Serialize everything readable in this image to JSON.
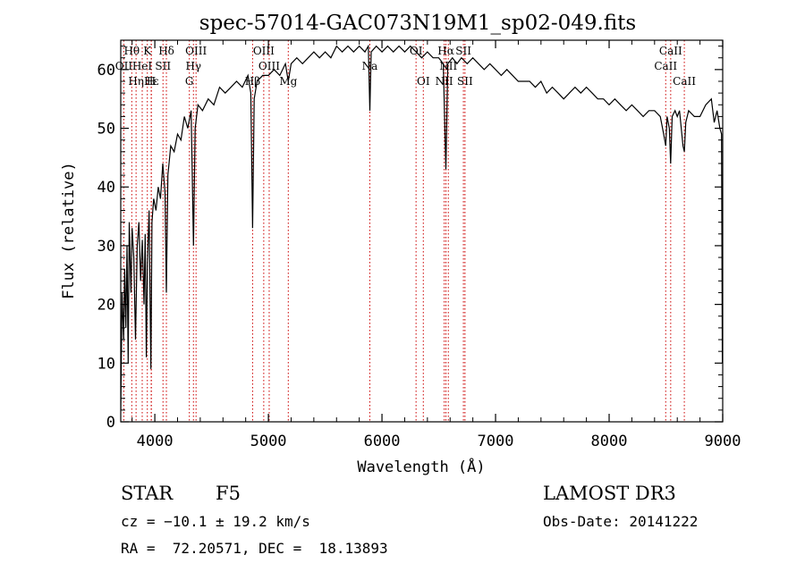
{
  "chart_data": {
    "type": "line",
    "title": "spec-57014-GAC073N19M1_sp02-049.fits",
    "xlabel": "Wavelength (Å)",
    "ylabel": "Flux (relative)",
    "xlim": [
      3700,
      9000
    ],
    "ylim": [
      0,
      65
    ],
    "x_ticks": [
      4000,
      5000,
      6000,
      7000,
      8000,
      9000
    ],
    "y_ticks": [
      0,
      10,
      20,
      30,
      40,
      50,
      60
    ],
    "grid": false,
    "series": [
      {
        "name": "spectrum",
        "points": [
          [
            3700,
            2
          ],
          [
            3712,
            22
          ],
          [
            3725,
            14
          ],
          [
            3735,
            26
          ],
          [
            3745,
            16
          ],
          [
            3755,
            30
          ],
          [
            3765,
            10
          ],
          [
            3775,
            34
          ],
          [
            3790,
            22
          ],
          [
            3800,
            33
          ],
          [
            3815,
            28
          ],
          [
            3830,
            14
          ],
          [
            3845,
            30
          ],
          [
            3860,
            34
          ],
          [
            3875,
            24
          ],
          [
            3890,
            31
          ],
          [
            3905,
            20
          ],
          [
            3915,
            32
          ],
          [
            3925,
            11
          ],
          [
            3935,
            27
          ],
          [
            3950,
            36
          ],
          [
            3965,
            9
          ],
          [
            3975,
            34
          ],
          [
            3990,
            38
          ],
          [
            4010,
            36
          ],
          [
            4030,
            40
          ],
          [
            4050,
            38
          ],
          [
            4070,
            44
          ],
          [
            4090,
            39
          ],
          [
            4102,
            22
          ],
          [
            4115,
            42
          ],
          [
            4140,
            47
          ],
          [
            4170,
            46
          ],
          [
            4200,
            49
          ],
          [
            4230,
            48
          ],
          [
            4260,
            52
          ],
          [
            4290,
            50
          ],
          [
            4320,
            53
          ],
          [
            4340,
            30
          ],
          [
            4355,
            50
          ],
          [
            4380,
            54
          ],
          [
            4420,
            53
          ],
          [
            4470,
            55
          ],
          [
            4520,
            54
          ],
          [
            4570,
            57
          ],
          [
            4620,
            56
          ],
          [
            4670,
            57
          ],
          [
            4720,
            58
          ],
          [
            4770,
            57
          ],
          [
            4820,
            59
          ],
          [
            4845,
            56
          ],
          [
            4861,
            33
          ],
          [
            4875,
            55
          ],
          [
            4900,
            58
          ],
          [
            4950,
            59
          ],
          [
            5000,
            59
          ],
          [
            5050,
            60
          ],
          [
            5100,
            59
          ],
          [
            5150,
            61
          ],
          [
            5175,
            58
          ],
          [
            5200,
            61
          ],
          [
            5250,
            62
          ],
          [
            5300,
            61
          ],
          [
            5350,
            62
          ],
          [
            5400,
            63
          ],
          [
            5450,
            62
          ],
          [
            5500,
            63
          ],
          [
            5550,
            62
          ],
          [
            5600,
            64
          ],
          [
            5650,
            63
          ],
          [
            5700,
            64
          ],
          [
            5750,
            63
          ],
          [
            5800,
            64
          ],
          [
            5850,
            63
          ],
          [
            5880,
            64
          ],
          [
            5893,
            53
          ],
          [
            5905,
            63
          ],
          [
            5950,
            64
          ],
          [
            6000,
            63
          ],
          [
            6050,
            64
          ],
          [
            6100,
            63
          ],
          [
            6150,
            64
          ],
          [
            6200,
            63
          ],
          [
            6250,
            64
          ],
          [
            6300,
            63
          ],
          [
            6350,
            62
          ],
          [
            6400,
            63
          ],
          [
            6450,
            62
          ],
          [
            6500,
            62
          ],
          [
            6540,
            61
          ],
          [
            6563,
            43
          ],
          [
            6580,
            61
          ],
          [
            6620,
            62
          ],
          [
            6660,
            61
          ],
          [
            6700,
            62
          ],
          [
            6750,
            61
          ],
          [
            6800,
            62
          ],
          [
            6850,
            61
          ],
          [
            6900,
            60
          ],
          [
            6950,
            61
          ],
          [
            7000,
            60
          ],
          [
            7050,
            59
          ],
          [
            7100,
            60
          ],
          [
            7150,
            59
          ],
          [
            7200,
            58
          ],
          [
            7250,
            58
          ],
          [
            7300,
            58
          ],
          [
            7350,
            57
          ],
          [
            7400,
            58
          ],
          [
            7450,
            56
          ],
          [
            7500,
            57
          ],
          [
            7550,
            56
          ],
          [
            7600,
            55
          ],
          [
            7650,
            56
          ],
          [
            7700,
            57
          ],
          [
            7750,
            56
          ],
          [
            7800,
            57
          ],
          [
            7850,
            56
          ],
          [
            7900,
            55
          ],
          [
            7950,
            55
          ],
          [
            8000,
            54
          ],
          [
            8050,
            55
          ],
          [
            8100,
            54
          ],
          [
            8150,
            53
          ],
          [
            8200,
            54
          ],
          [
            8250,
            53
          ],
          [
            8300,
            52
          ],
          [
            8350,
            53
          ],
          [
            8400,
            53
          ],
          [
            8450,
            52
          ],
          [
            8480,
            49
          ],
          [
            8498,
            47
          ],
          [
            8510,
            52
          ],
          [
            8530,
            50
          ],
          [
            8542,
            44
          ],
          [
            8555,
            52
          ],
          [
            8580,
            53
          ],
          [
            8600,
            52
          ],
          [
            8620,
            53
          ],
          [
            8650,
            47
          ],
          [
            8662,
            46
          ],
          [
            8675,
            51
          ],
          [
            8700,
            53
          ],
          [
            8750,
            52
          ],
          [
            8800,
            52
          ],
          [
            8850,
            54
          ],
          [
            8900,
            55
          ],
          [
            8925,
            51
          ],
          [
            8950,
            53
          ],
          [
            8975,
            50
          ],
          [
            8990,
            49
          ],
          [
            8997,
            10
          ]
        ]
      }
    ],
    "line_markers": [
      {
        "label": "Hθ",
        "wavelength": 3797,
        "row": 0
      },
      {
        "label": "K",
        "wavelength": 3934,
        "row": 0
      },
      {
        "label": "Hδ",
        "wavelength": 4102,
        "row": 0
      },
      {
        "label": "OIII",
        "wavelength": 4363,
        "row": 0
      },
      {
        "label": "OIII",
        "wavelength": 4959,
        "row": 0
      },
      {
        "label": "OI",
        "wavelength": 6300,
        "row": 0
      },
      {
        "label": "Hα",
        "wavelength": 6563,
        "row": 0
      },
      {
        "label": "SII",
        "wavelength": 6717,
        "row": 0
      },
      {
        "label": "CaII",
        "wavelength": 8542,
        "row": 0
      },
      {
        "label": "OII",
        "wavelength": 3727,
        "row": 1
      },
      {
        "label": "HeI",
        "wavelength": 3889,
        "row": 1
      },
      {
        "label": "SII",
        "wavelength": 4072,
        "row": 1
      },
      {
        "label": "Hγ",
        "wavelength": 4340,
        "row": 1
      },
      {
        "label": "OIII",
        "wavelength": 5007,
        "row": 1
      },
      {
        "label": "Na",
        "wavelength": 5893,
        "row": 1
      },
      {
        "label": "NII",
        "wavelength": 6584,
        "row": 1
      },
      {
        "label": "CaII",
        "wavelength": 8498,
        "row": 1
      },
      {
        "label": "Hε",
        "wavelength": 3970,
        "row": 2
      },
      {
        "label": "Hη",
        "wavelength": 3835,
        "row": 2
      },
      {
        "label": "H",
        "wavelength": 3968,
        "row": 2
      },
      {
        "label": "G",
        "wavelength": 4304,
        "row": 2
      },
      {
        "label": "Hβ",
        "wavelength": 4861,
        "row": 2
      },
      {
        "label": "Mg",
        "wavelength": 5175,
        "row": 2
      },
      {
        "label": "OI",
        "wavelength": 6364,
        "row": 2
      },
      {
        "label": "NII",
        "wavelength": 6548,
        "row": 2
      },
      {
        "label": "SII",
        "wavelength": 6731,
        "row": 2
      },
      {
        "label": "CaII",
        "wavelength": 8662,
        "row": 2
      }
    ]
  },
  "info": {
    "object_type": "STAR",
    "subclass": "F5",
    "survey": "LAMOST DR3",
    "redshift_line": "cz = −10.1 ± 19.2 km/s",
    "obs_date_line": "Obs-Date: 20141222",
    "coords_line": "RA =  72.20571, DEC =  18.13893"
  },
  "colors": {
    "spectrum": "#000000",
    "marker_line": "#cc0000",
    "axis": "#000000"
  }
}
